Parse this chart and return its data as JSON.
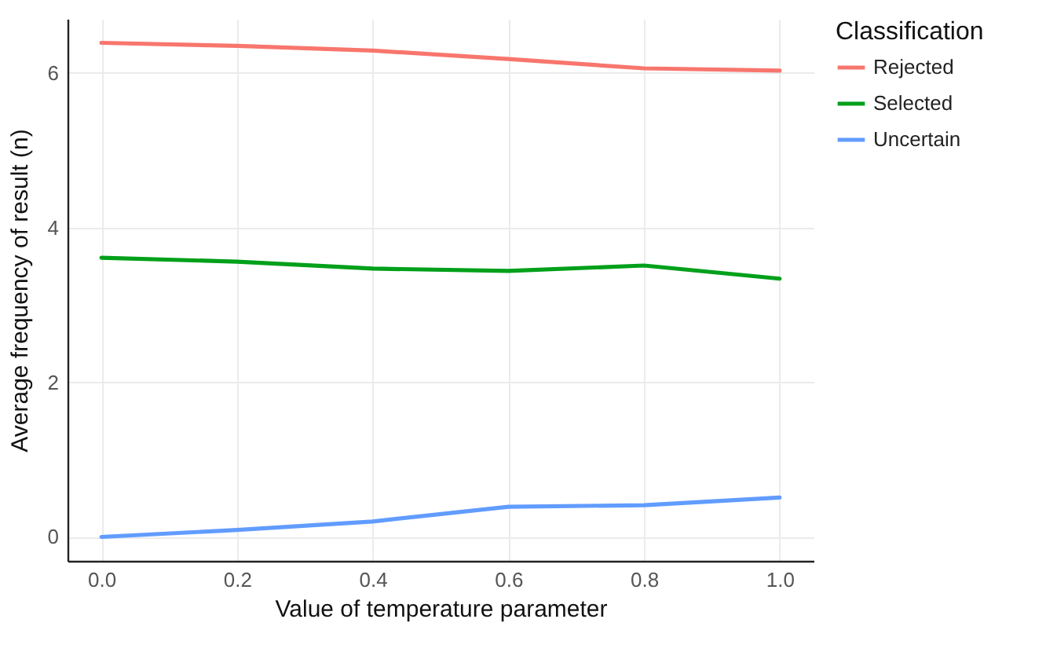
{
  "chart_data": {
    "type": "line",
    "xlabel": "Value of temperature parameter",
    "ylabel": "Average frequency of result (n)",
    "legend_title": "Classification",
    "legend": "right",
    "x": [
      0.0,
      0.2,
      0.4,
      0.6,
      0.8,
      1.0
    ],
    "series": [
      {
        "name": "Rejected",
        "color": "#f8766d",
        "values": [
          6.39,
          6.35,
          6.29,
          6.18,
          6.06,
          6.03
        ]
      },
      {
        "name": "Selected",
        "color": "#00a01a",
        "values": [
          3.61,
          3.56,
          3.47,
          3.44,
          3.51,
          3.34
        ]
      },
      {
        "name": "Uncertain",
        "color": "#619cff",
        "values": [
          0.0,
          0.09,
          0.2,
          0.39,
          0.41,
          0.51
        ]
      }
    ],
    "xlim": [
      -0.05,
      1.05
    ],
    "ylim": [
      -0.31,
      6.7
    ],
    "xticks": [
      {
        "value": 0,
        "label": "0.0"
      },
      0.2,
      0.4,
      0.6,
      0.8,
      {
        "value": 1,
        "label": "1.0"
      }
    ],
    "yticks": [
      0,
      2,
      4,
      6
    ],
    "grid": true,
    "marker": "none",
    "line_style": "solid"
  }
}
